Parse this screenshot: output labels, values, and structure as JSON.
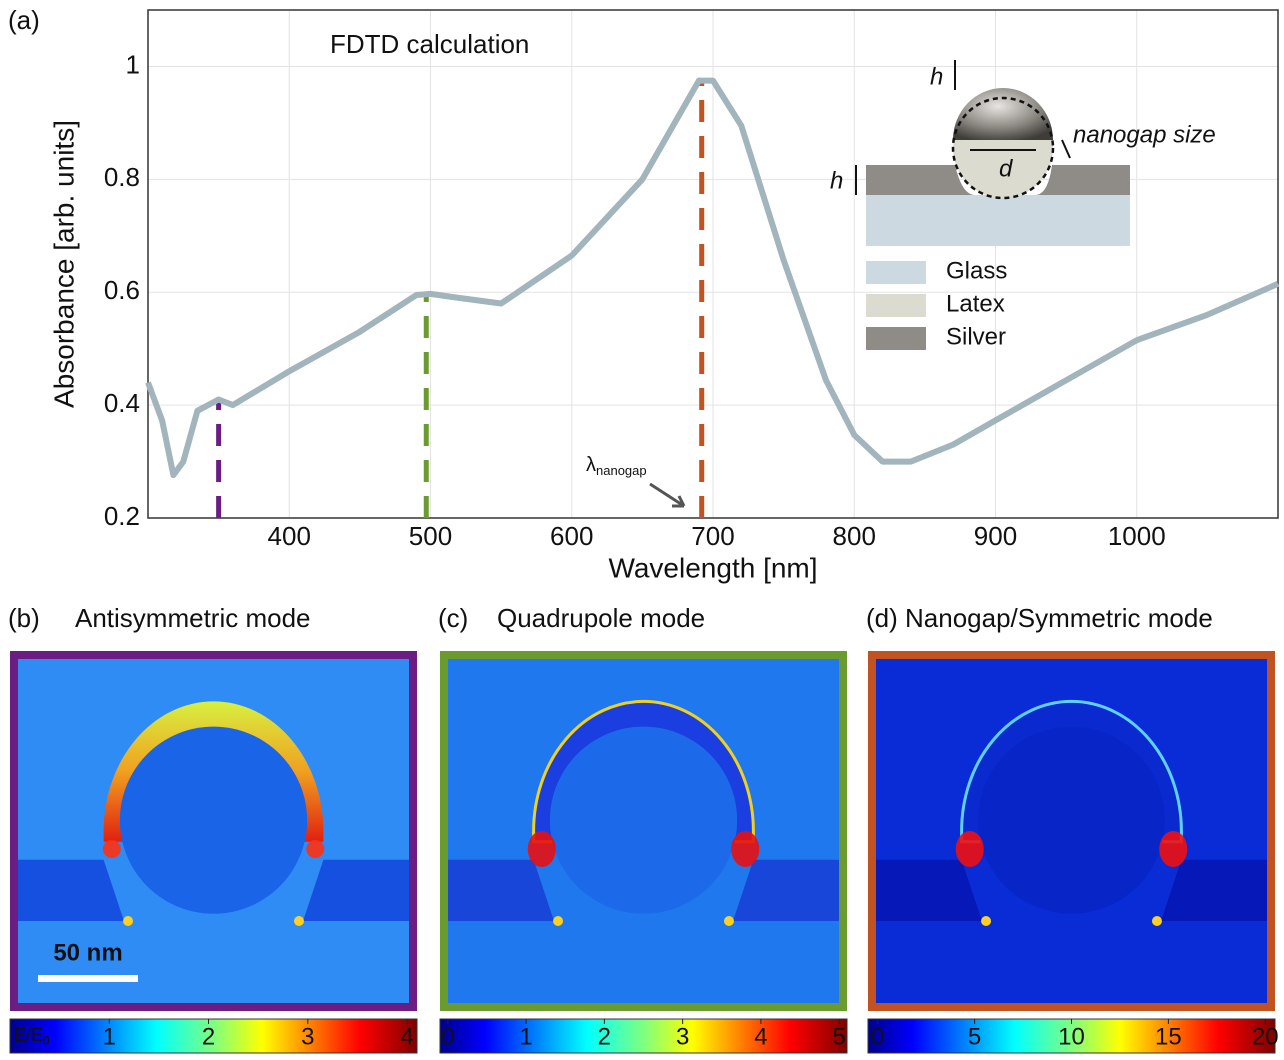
{
  "chart_data": [
    {
      "type": "line",
      "panel_label": "(a)",
      "title": "FDTD calculation",
      "x_label": "Wavelength [nm]",
      "y_label": "Absorbance [arb. units]",
      "x": [
        300,
        310,
        318,
        325,
        335,
        350,
        360,
        380,
        400,
        450,
        490,
        500,
        520,
        550,
        600,
        650,
        690,
        700,
        720,
        750,
        780,
        800,
        820,
        840,
        870,
        900,
        950,
        1000,
        1050,
        1100
      ],
      "values": [
        0.44,
        0.373,
        0.276,
        0.3,
        0.39,
        0.41,
        0.4,
        0.43,
        0.46,
        0.53,
        0.595,
        0.597,
        0.59,
        0.58,
        0.665,
        0.8,
        0.975,
        0.975,
        0.895,
        0.657,
        0.444,
        0.347,
        0.3,
        0.3,
        0.33,
        0.373,
        0.444,
        0.515,
        0.56,
        0.615
      ],
      "color": "#a2b4bc",
      "xlim": [
        300,
        1100
      ],
      "ylim": [
        0.2,
        1.1
      ],
      "xticks": [
        400,
        500,
        600,
        700,
        800,
        900,
        1000
      ],
      "yticks": [
        0.2,
        0.4,
        0.6,
        0.8,
        1
      ],
      "grid": true,
      "markers": [
        {
          "x": 350,
          "value": 0.41,
          "color": "#6b1d84"
        },
        {
          "x": 497,
          "value": 0.595,
          "color": "#6b9a2e"
        },
        {
          "x": 692,
          "value": 0.975,
          "color": "#c0531f"
        }
      ],
      "annotation": {
        "text": "λ",
        "subscript": "nanogap"
      },
      "inset": {
        "h": "h",
        "d": "d",
        "gap": "nanogap size",
        "legend": [
          {
            "label": "Glass",
            "color": "#cdd9e1"
          },
          {
            "label": "Latex",
            "color": "#dcdbd0"
          },
          {
            "label": "Silver",
            "color": "#8f8c88"
          }
        ]
      }
    },
    {
      "type": "field-map",
      "panel_label": "(b)",
      "title": "Antisymmetric mode",
      "color": "#6b1d84",
      "scale_bar": "50 nm",
      "colorbar": {
        "label": {
          "text": "E/E",
          "subscript": "0"
        },
        "lim": [
          0,
          4.1
        ],
        "ticks": [
          1,
          2,
          3,
          4
        ]
      }
    },
    {
      "type": "field-map",
      "panel_label": "(c)",
      "title": "Quadrupole mode",
      "color": "#6b9a2e",
      "colorbar": {
        "lim": [
          -0.1,
          5.1
        ],
        "ticks": [
          0,
          1,
          2,
          3,
          4,
          5
        ]
      }
    },
    {
      "type": "field-map",
      "panel_label": "(d)",
      "title": "Nanogap/Symmetric mode",
      "color": "#c0531f",
      "colorbar": {
        "lim": [
          -0.5,
          20.5
        ],
        "ticks": [
          0,
          5,
          10,
          15,
          20
        ]
      }
    }
  ]
}
